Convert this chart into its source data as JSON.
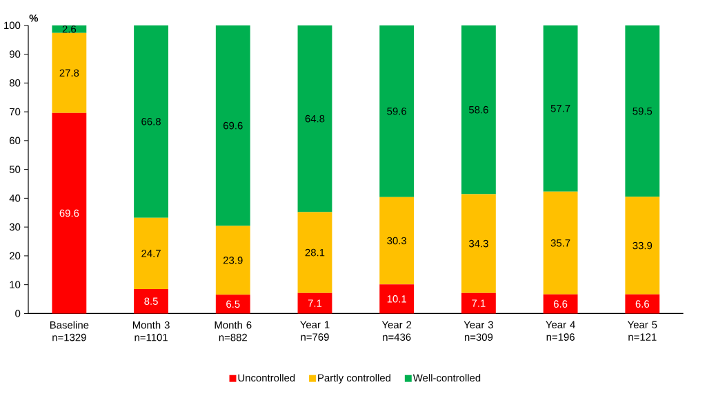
{
  "chart_data": {
    "type": "bar",
    "stacked": true,
    "ylabel": "%",
    "categories": [
      "Baseline n=1329",
      "Month 3 n=1101",
      "Month 6 n=882",
      "Year 1 n=769",
      "Year 2 n=436",
      "Year 3 n=309",
      "Year 4 n=196",
      "Year 5 n=121"
    ],
    "series": [
      {
        "name": "Uncontrolled",
        "color": "#ff0000",
        "values": [
          69.6,
          8.5,
          6.5,
          7.1,
          10.1,
          7.1,
          6.6,
          6.6
        ]
      },
      {
        "name": "Partly controlled",
        "color": "#ffc000",
        "values": [
          27.8,
          24.7,
          23.9,
          28.1,
          30.3,
          34.3,
          35.7,
          33.9
        ]
      },
      {
        "name": "Well-controlled",
        "color": "#00b050",
        "values": [
          2.6,
          66.8,
          69.6,
          64.8,
          59.6,
          58.6,
          57.7,
          59.5
        ]
      }
    ],
    "ylim": [
      0,
      100
    ],
    "yticks": [
      0,
      10,
      20,
      30,
      40,
      50,
      60,
      70,
      80,
      90,
      100
    ],
    "data_labels": true,
    "legend": "bottom",
    "grid": false
  }
}
